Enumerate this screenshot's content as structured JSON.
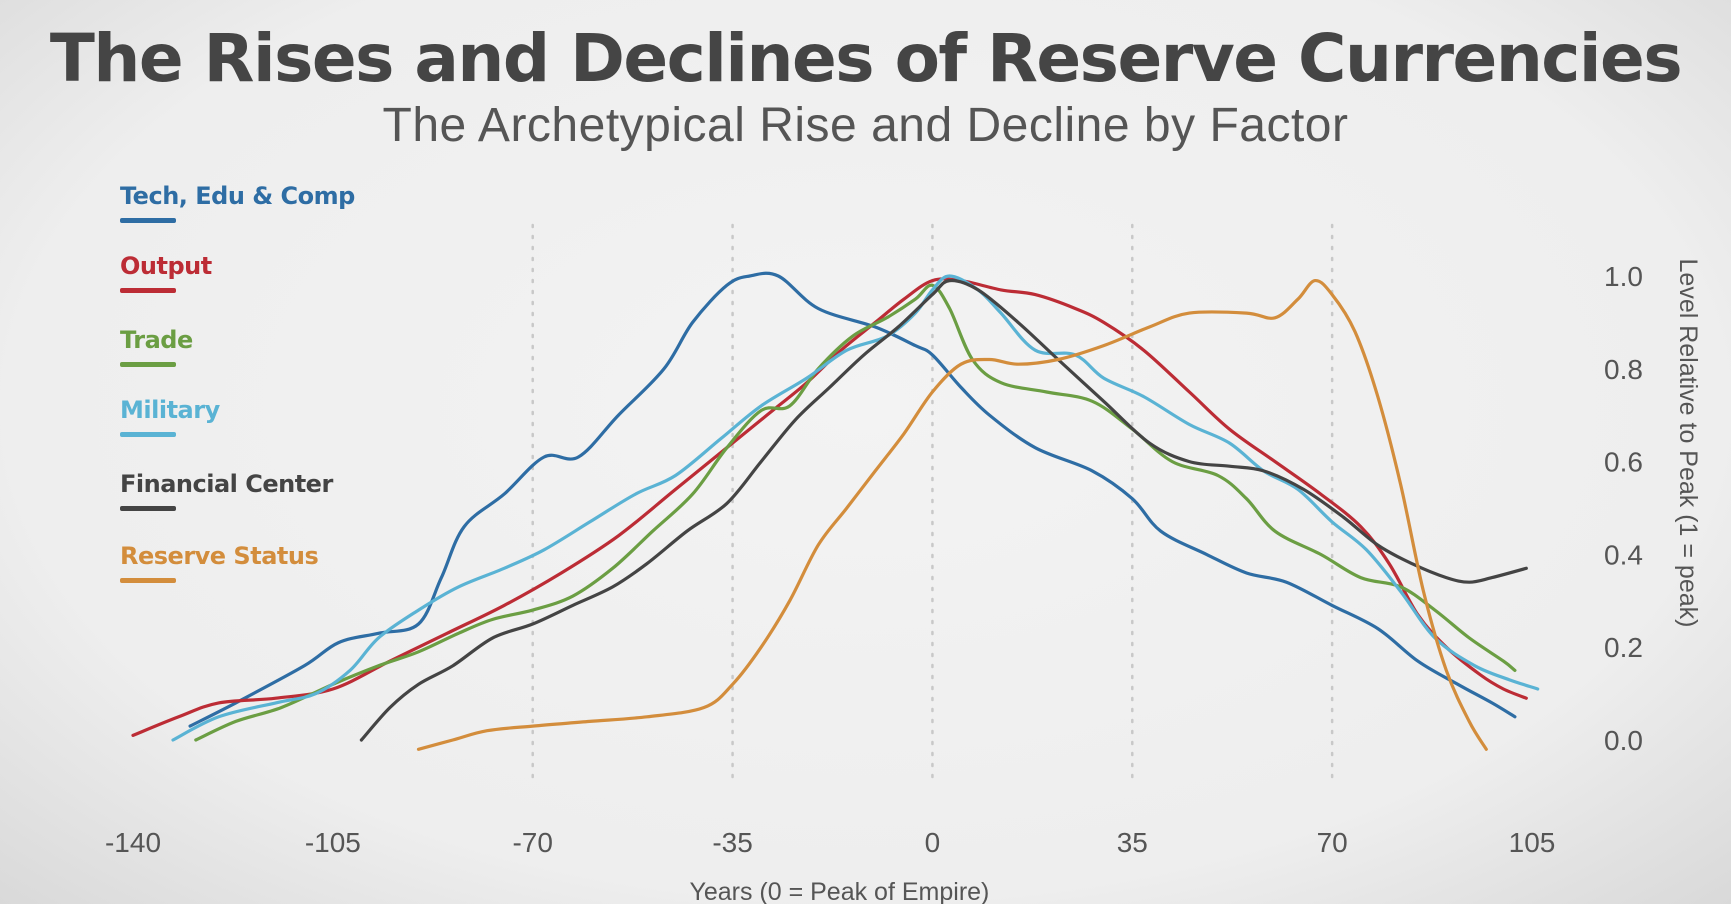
{
  "title": "The Rises and Declines of Reserve Currencies",
  "subtitle": "The Archetypical Rise and Decline by Factor",
  "chart_data": {
    "type": "line",
    "xlabel": "Years (0 = Peak of Empire)",
    "ylabel": "Level Relative to Peak (1 = peak)",
    "xlim": [
      -140,
      105
    ],
    "ylim": [
      0,
      1.0
    ],
    "xticks": [
      "-140",
      "-105",
      "-70",
      "-35",
      "0",
      "35",
      "70",
      "105"
    ],
    "yticks": [
      "0.0",
      "0.2",
      "0.4",
      "0.6",
      "0.8",
      "1.0"
    ],
    "gridlines_x": [
      -70,
      -35,
      0,
      35,
      70
    ],
    "legend_position": "left",
    "series": [
      {
        "name": "Tech, Edu & Comp",
        "color": "#2e6da4",
        "points": [
          [
            -130,
            0.03
          ],
          [
            -122,
            0.08
          ],
          [
            -110,
            0.16
          ],
          [
            -104,
            0.21
          ],
          [
            -97,
            0.23
          ],
          [
            -90,
            0.25
          ],
          [
            -86,
            0.35
          ],
          [
            -82,
            0.46
          ],
          [
            -75,
            0.53
          ],
          [
            -68,
            0.61
          ],
          [
            -62,
            0.61
          ],
          [
            -55,
            0.7
          ],
          [
            -47,
            0.8
          ],
          [
            -42,
            0.9
          ],
          [
            -36,
            0.98
          ],
          [
            -32,
            1.0
          ],
          [
            -27,
            1.0
          ],
          [
            -20,
            0.93
          ],
          [
            -10,
            0.89
          ],
          [
            -3,
            0.85
          ],
          [
            0,
            0.83
          ],
          [
            5,
            0.76
          ],
          [
            10,
            0.7
          ],
          [
            18,
            0.63
          ],
          [
            28,
            0.58
          ],
          [
            35,
            0.52
          ],
          [
            40,
            0.45
          ],
          [
            48,
            0.4
          ],
          [
            55,
            0.36
          ],
          [
            62,
            0.34
          ],
          [
            70,
            0.29
          ],
          [
            78,
            0.24
          ],
          [
            85,
            0.17
          ],
          [
            92,
            0.12
          ],
          [
            98,
            0.08
          ],
          [
            102,
            0.05
          ]
        ]
      },
      {
        "name": "Output",
        "color": "#bc2c35",
        "points": [
          [
            -140,
            0.01
          ],
          [
            -132,
            0.05
          ],
          [
            -125,
            0.08
          ],
          [
            -115,
            0.09
          ],
          [
            -105,
            0.11
          ],
          [
            -95,
            0.17
          ],
          [
            -85,
            0.23
          ],
          [
            -75,
            0.29
          ],
          [
            -65,
            0.36
          ],
          [
            -55,
            0.44
          ],
          [
            -45,
            0.54
          ],
          [
            -35,
            0.64
          ],
          [
            -28,
            0.71
          ],
          [
            -22,
            0.77
          ],
          [
            -16,
            0.84
          ],
          [
            -10,
            0.9
          ],
          [
            -5,
            0.95
          ],
          [
            0,
            0.99
          ],
          [
            5,
            0.99
          ],
          [
            12,
            0.97
          ],
          [
            18,
            0.96
          ],
          [
            25,
            0.93
          ],
          [
            30,
            0.9
          ],
          [
            37,
            0.84
          ],
          [
            45,
            0.75
          ],
          [
            52,
            0.67
          ],
          [
            60,
            0.6
          ],
          [
            68,
            0.53
          ],
          [
            75,
            0.46
          ],
          [
            80,
            0.38
          ],
          [
            85,
            0.27
          ],
          [
            90,
            0.2
          ],
          [
            96,
            0.14
          ],
          [
            100,
            0.11
          ],
          [
            104,
            0.09
          ]
        ]
      },
      {
        "name": "Trade",
        "color": "#6b9e43",
        "points": [
          [
            -129,
            0.0
          ],
          [
            -122,
            0.04
          ],
          [
            -114,
            0.07
          ],
          [
            -105,
            0.12
          ],
          [
            -97,
            0.16
          ],
          [
            -90,
            0.19
          ],
          [
            -83,
            0.23
          ],
          [
            -77,
            0.26
          ],
          [
            -70,
            0.28
          ],
          [
            -63,
            0.31
          ],
          [
            -56,
            0.37
          ],
          [
            -49,
            0.45
          ],
          [
            -42,
            0.53
          ],
          [
            -36,
            0.63
          ],
          [
            -30,
            0.71
          ],
          [
            -25,
            0.72
          ],
          [
            -20,
            0.8
          ],
          [
            -14,
            0.87
          ],
          [
            -8,
            0.91
          ],
          [
            -3,
            0.95
          ],
          [
            0,
            0.98
          ],
          [
            3,
            0.93
          ],
          [
            7,
            0.82
          ],
          [
            12,
            0.77
          ],
          [
            20,
            0.75
          ],
          [
            28,
            0.73
          ],
          [
            35,
            0.67
          ],
          [
            42,
            0.6
          ],
          [
            50,
            0.57
          ],
          [
            55,
            0.52
          ],
          [
            60,
            0.45
          ],
          [
            68,
            0.4
          ],
          [
            75,
            0.35
          ],
          [
            82,
            0.33
          ],
          [
            88,
            0.28
          ],
          [
            94,
            0.22
          ],
          [
            100,
            0.17
          ],
          [
            102,
            0.15
          ]
        ]
      },
      {
        "name": "Military",
        "color": "#5ab3d4",
        "points": [
          [
            -133,
            0.0
          ],
          [
            -125,
            0.05
          ],
          [
            -115,
            0.08
          ],
          [
            -108,
            0.1
          ],
          [
            -102,
            0.15
          ],
          [
            -97,
            0.22
          ],
          [
            -90,
            0.28
          ],
          [
            -83,
            0.33
          ],
          [
            -75,
            0.37
          ],
          [
            -68,
            0.41
          ],
          [
            -60,
            0.47
          ],
          [
            -52,
            0.53
          ],
          [
            -45,
            0.57
          ],
          [
            -37,
            0.65
          ],
          [
            -30,
            0.72
          ],
          [
            -22,
            0.78
          ],
          [
            -15,
            0.84
          ],
          [
            -8,
            0.87
          ],
          [
            -3,
            0.92
          ],
          [
            0,
            0.97
          ],
          [
            3,
            1.0
          ],
          [
            8,
            0.97
          ],
          [
            12,
            0.92
          ],
          [
            18,
            0.84
          ],
          [
            25,
            0.83
          ],
          [
            30,
            0.78
          ],
          [
            37,
            0.74
          ],
          [
            45,
            0.68
          ],
          [
            52,
            0.64
          ],
          [
            58,
            0.58
          ],
          [
            64,
            0.54
          ],
          [
            70,
            0.47
          ],
          [
            76,
            0.41
          ],
          [
            82,
            0.32
          ],
          [
            88,
            0.22
          ],
          [
            95,
            0.16
          ],
          [
            101,
            0.13
          ],
          [
            106,
            0.11
          ]
        ]
      },
      {
        "name": "Financial Center",
        "color": "#444444",
        "points": [
          [
            -100,
            0.0
          ],
          [
            -95,
            0.07
          ],
          [
            -90,
            0.12
          ],
          [
            -84,
            0.16
          ],
          [
            -77,
            0.22
          ],
          [
            -70,
            0.25
          ],
          [
            -63,
            0.29
          ],
          [
            -56,
            0.33
          ],
          [
            -50,
            0.38
          ],
          [
            -43,
            0.45
          ],
          [
            -36,
            0.51
          ],
          [
            -30,
            0.6
          ],
          [
            -24,
            0.69
          ],
          [
            -18,
            0.76
          ],
          [
            -12,
            0.83
          ],
          [
            -6,
            0.89
          ],
          [
            0,
            0.96
          ],
          [
            3,
            0.99
          ],
          [
            8,
            0.97
          ],
          [
            15,
            0.9
          ],
          [
            22,
            0.82
          ],
          [
            30,
            0.73
          ],
          [
            38,
            0.64
          ],
          [
            45,
            0.6
          ],
          [
            52,
            0.59
          ],
          [
            58,
            0.58
          ],
          [
            65,
            0.54
          ],
          [
            72,
            0.48
          ],
          [
            78,
            0.42
          ],
          [
            84,
            0.38
          ],
          [
            90,
            0.35
          ],
          [
            94,
            0.34
          ],
          [
            98,
            0.35
          ],
          [
            104,
            0.37
          ]
        ]
      },
      {
        "name": "Reserve Status",
        "color": "#d38d3c",
        "points": [
          [
            -90,
            -0.02
          ],
          [
            -84,
            0.0
          ],
          [
            -78,
            0.02
          ],
          [
            -70,
            0.03
          ],
          [
            -60,
            0.04
          ],
          [
            -50,
            0.05
          ],
          [
            -40,
            0.07
          ],
          [
            -35,
            0.12
          ],
          [
            -30,
            0.2
          ],
          [
            -25,
            0.3
          ],
          [
            -20,
            0.42
          ],
          [
            -15,
            0.5
          ],
          [
            -10,
            0.58
          ],
          [
            -5,
            0.66
          ],
          [
            0,
            0.75
          ],
          [
            5,
            0.81
          ],
          [
            10,
            0.82
          ],
          [
            15,
            0.81
          ],
          [
            22,
            0.82
          ],
          [
            30,
            0.85
          ],
          [
            38,
            0.89
          ],
          [
            45,
            0.92
          ],
          [
            55,
            0.92
          ],
          [
            60,
            0.91
          ],
          [
            64,
            0.95
          ],
          [
            67,
            0.99
          ],
          [
            70,
            0.96
          ],
          [
            74,
            0.88
          ],
          [
            78,
            0.74
          ],
          [
            82,
            0.55
          ],
          [
            86,
            0.32
          ],
          [
            90,
            0.15
          ],
          [
            94,
            0.04
          ],
          [
            97,
            -0.02
          ]
        ]
      }
    ]
  }
}
